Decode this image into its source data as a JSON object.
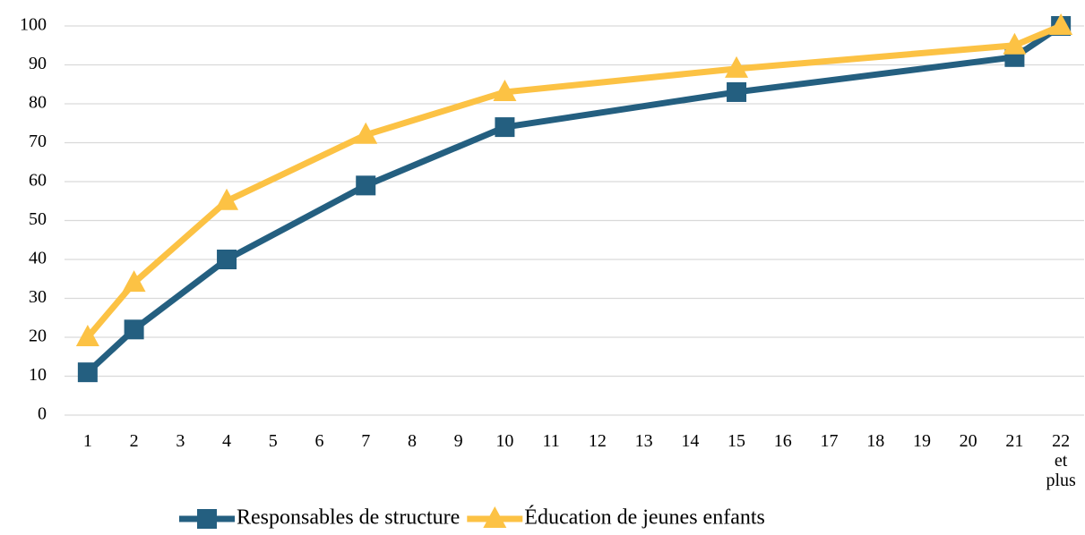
{
  "chart_data": {
    "type": "line",
    "x": [
      1,
      2,
      4,
      7,
      10,
      15,
      21,
      22
    ],
    "series": [
      {
        "name": "Responsables de structure",
        "color": "#245f80",
        "marker": "square",
        "values": [
          11,
          22,
          40,
          59,
          74,
          83,
          92,
          100
        ]
      },
      {
        "name": "Éducation de jeunes enfants",
        "color": "#fcc244",
        "marker": "triangle",
        "values": [
          20,
          34,
          55,
          72,
          83,
          89,
          95,
          100
        ]
      }
    ],
    "xlim": [
      0.5,
      22.5
    ],
    "xticks": [
      1,
      2,
      3,
      4,
      5,
      6,
      7,
      8,
      9,
      10,
      11,
      12,
      13,
      14,
      15,
      16,
      17,
      18,
      19,
      20,
      21,
      {
        "value": 22,
        "label": "22 et plus"
      }
    ],
    "ylim": [
      0,
      100
    ],
    "yticks": [
      0,
      10,
      20,
      30,
      40,
      50,
      60,
      70,
      80,
      90,
      100
    ],
    "grid": true,
    "legend": "bottom"
  }
}
